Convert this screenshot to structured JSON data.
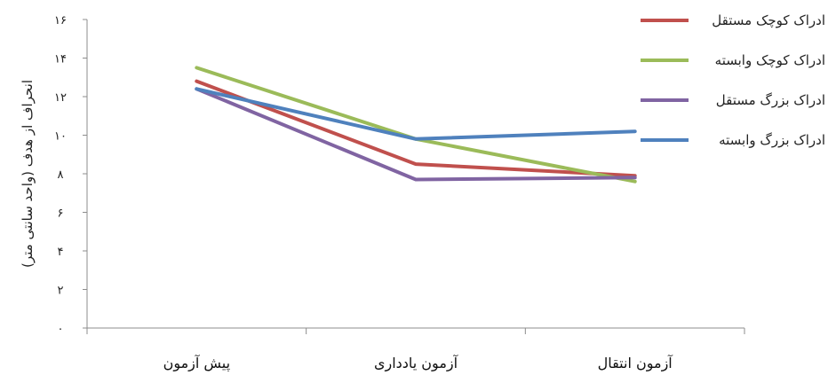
{
  "chart_data": {
    "type": "line",
    "title": "",
    "xlabel": "",
    "ylabel": "انحراف از هدف (واحد سانتی متر)",
    "categories": [
      "پیش آزمون",
      "آزمون یادداری",
      "آزمون انتقال"
    ],
    "ylim": [
      0,
      16
    ],
    "yticks": [
      0,
      2,
      4,
      6,
      8,
      10,
      12,
      14,
      16
    ],
    "ytick_labels": [
      "۰",
      "۲",
      "۴",
      "۶",
      "۸",
      "۱۰",
      "۱۲",
      "۱۴",
      "۱۶"
    ],
    "grid": false,
    "legend_position": "right",
    "series": [
      {
        "name": "ادراک کوچک مستقل",
        "color": "#c0504d",
        "values": [
          12.8,
          8.5,
          7.9
        ]
      },
      {
        "name": "ادراک کوچک وابسته",
        "color": "#9bbb59",
        "values": [
          13.5,
          9.8,
          7.6
        ]
      },
      {
        "name": "ادراک بزرگ مستقل",
        "color": "#8064a2",
        "values": [
          12.4,
          7.7,
          7.8
        ]
      },
      {
        "name": "ادراک بزرگ وابسته",
        "color": "#4f81bd",
        "values": [
          12.4,
          9.8,
          10.2
        ]
      }
    ]
  }
}
